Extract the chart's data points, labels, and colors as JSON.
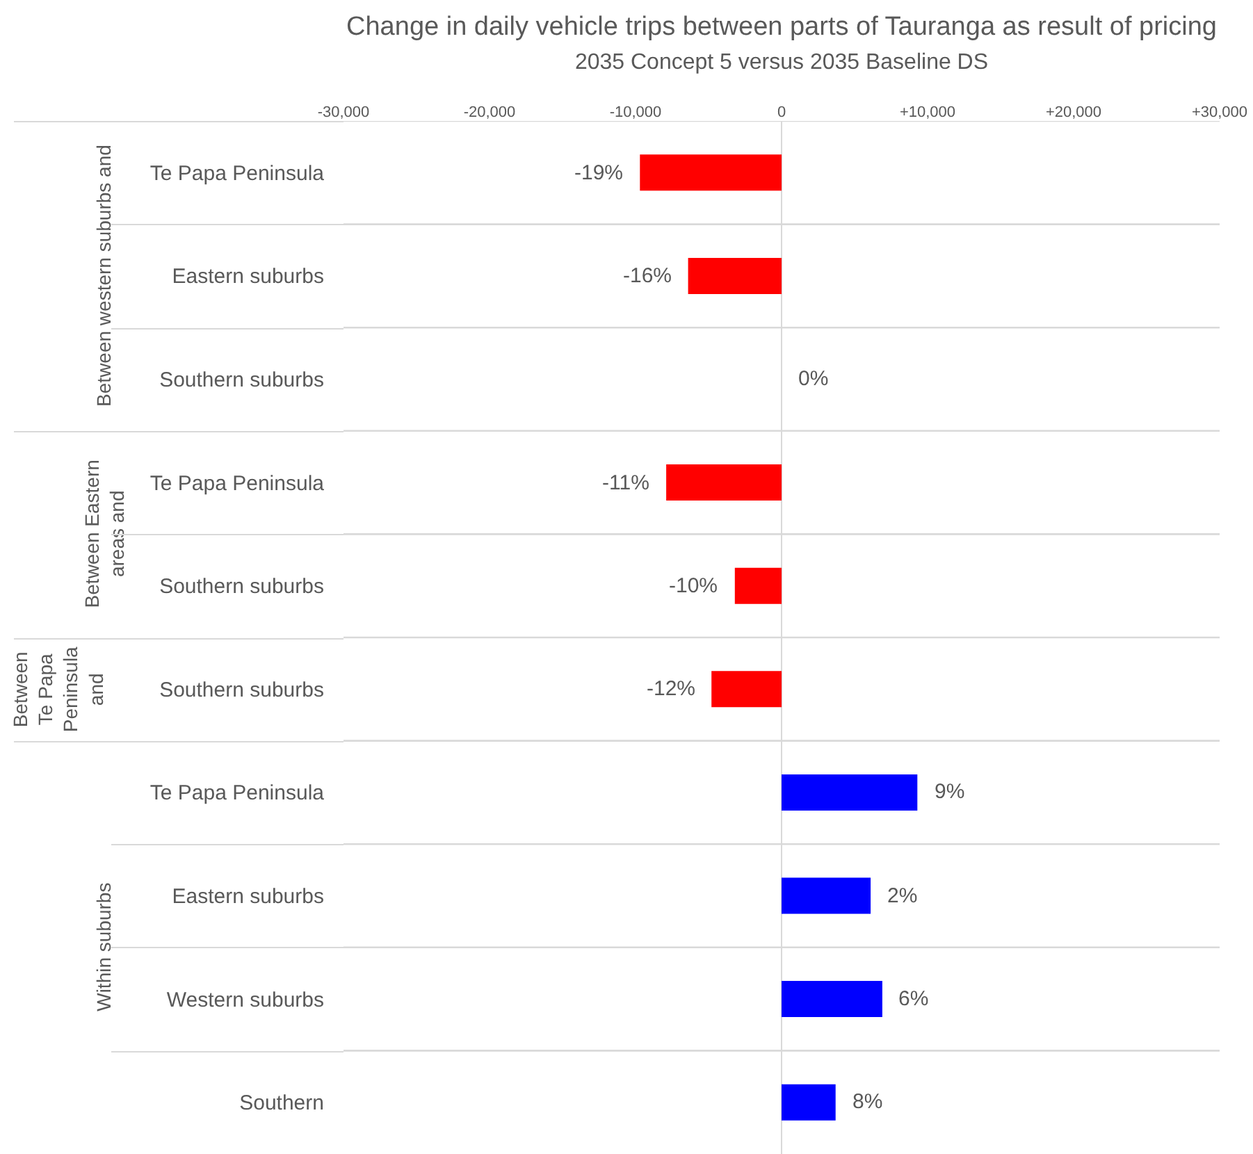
{
  "chart_data": {
    "type": "bar",
    "orientation": "horizontal",
    "title": "Change in daily vehicle trips between parts of Tauranga as result of pricing",
    "subtitle": "2035 Concept 5 versus 2035 Baseline DS",
    "categories": [
      "Te Papa Peninsula",
      "Eastern suburbs",
      "Southern suburbs",
      "Te Papa Peninsula",
      "Southern suburbs",
      "Southern suburbs",
      "Te Papa Peninsula",
      "Eastern suburbs",
      "Western suburbs",
      "Southern"
    ],
    "values": [
      -9700,
      -6400,
      0,
      -7900,
      -3200,
      -4800,
      9300,
      6100,
      6900,
      3700
    ],
    "colors": [
      "#ff0000",
      "#ff0000",
      "#ff0000",
      "#ff0000",
      "#ff0000",
      "#ff0000",
      "#0000ff",
      "#0000ff",
      "#0000ff",
      "#0000ff"
    ],
    "annotations": [
      "-19%",
      "-16%",
      "0%",
      "-11%",
      "-10%",
      "-12%",
      "9%",
      "2%",
      "6%",
      "8%",
      "Between western suburbs and",
      "Between Eastern areas and",
      "Between Te Papa Peninsula and",
      "Within suburbs"
    ],
    "xlim": [
      -30000,
      30000
    ],
    "xticks": [
      {
        "value": -30000,
        "label": "-30,000"
      },
      {
        "value": -20000,
        "label": "-20,000"
      },
      {
        "value": -10000,
        "label": "-10,000"
      },
      0,
      {
        "value": 10000,
        "label": "+10,000"
      },
      {
        "value": 20000,
        "label": "+20,000"
      },
      {
        "value": 30000,
        "label": "+30,000"
      }
    ],
    "grid": "y",
    "legend": false
  }
}
